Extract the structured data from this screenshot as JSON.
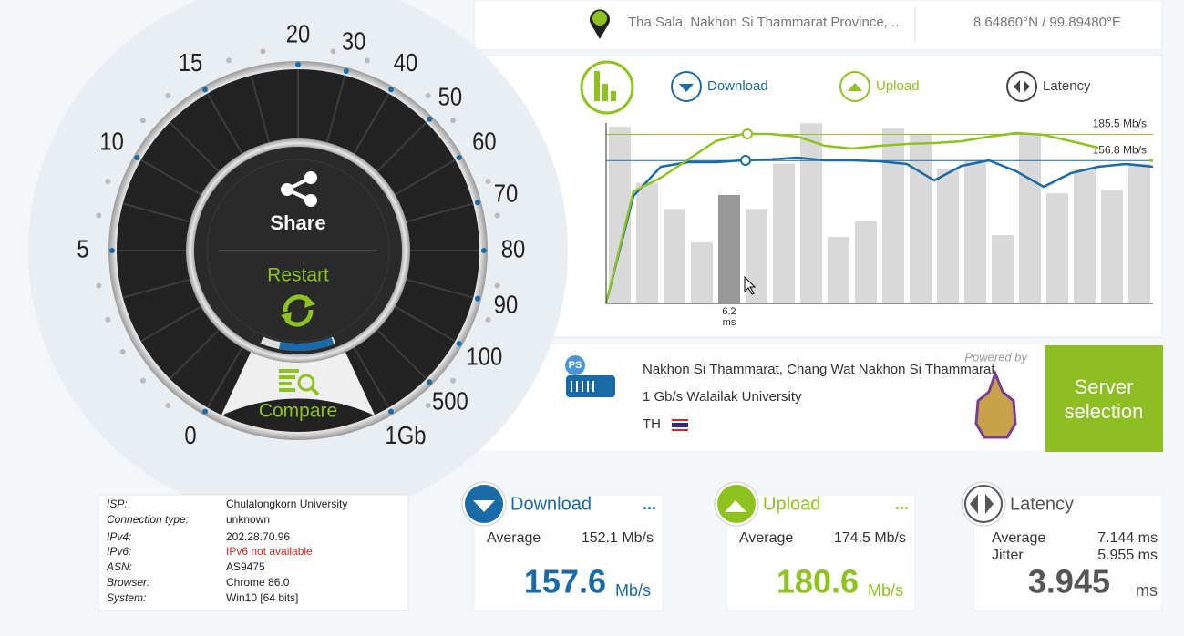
{
  "location": {
    "place": "Tha Sala, Nakhon Si Thammarat Province, ...",
    "coords": "8.64860°N / 99.89480°E"
  },
  "gauge": {
    "labels": [
      "0",
      "5",
      "10",
      "15",
      "20",
      "30",
      "40",
      "50",
      "60",
      "70",
      "80",
      "90",
      "100",
      "500",
      "1Gb"
    ],
    "share": "Share",
    "restart": "Restart",
    "compare": "Compare"
  },
  "graph": {
    "ylim": [
      0,
      210
    ],
    "y2lim": [
      0,
      10.94
    ],
    "series": [
      {
        "name": "Download",
        "color": "#1a6aa8",
        "values": [
          0,
          118,
          150,
          155,
          155,
          157,
          158,
          160,
          157,
          157,
          156,
          153,
          135,
          151,
          157,
          145,
          128,
          143,
          150,
          153,
          150
        ]
      },
      {
        "name": "Upload",
        "color": "#8dc21f",
        "values": [
          0,
          123,
          138,
          158,
          178,
          186,
          186,
          183,
          173,
          170,
          173,
          175,
          176,
          178,
          183,
          187,
          185,
          178,
          171,
          null,
          null
        ]
      }
    ],
    "latency": {
      "name": "Latency",
      "color": "#d9d9d9",
      "unit": "ms",
      "values": [
        10.1,
        6.9,
        5.4,
        3.5,
        6.2,
        5.4,
        8.0,
        10.3,
        3.8,
        4.7,
        10.0,
        9.7,
        7.7,
        8.2,
        3.9,
        9.7,
        6.3,
        7.7,
        6.5,
        8.0
      ]
    },
    "levels": [
      {
        "value": 185.5,
        "label": "185.5 Mb/s"
      },
      {
        "value": 156.8,
        "label": "156.8 Mb/s"
      }
    ]
  },
  "server": {
    "logo": "PS",
    "powered_by": "Powered by",
    "city": "Nakhon Si Thammarat, Chang Wat Nakhon Si Thammarat",
    "provider": "1 Gb/s Walailak University",
    "country": "TH",
    "button": "Server selection"
  },
  "client": {
    "rows": [
      [
        "ISP:",
        "Chulalongkorn University"
      ],
      [
        "Connection type:",
        "unknown"
      ],
      [
        "IPv4:",
        "202.28.70.96"
      ],
      [
        "IPv6:",
        "IPv6 not available"
      ],
      [
        "ASN:",
        "AS9475"
      ],
      [
        "Browser:",
        "Chrome 86.0"
      ],
      [
        "System:",
        "Win10 [64 bits]"
      ]
    ]
  },
  "results": {
    "download": {
      "title": "Download",
      "more": "...",
      "average_label": "Average",
      "average": "152.1 Mb/s",
      "value": 157.6,
      "unit": "Mb/s"
    },
    "upload": {
      "title": "Upload",
      "more": "...",
      "average_label": "Average",
      "average": "174.5 Mb/s",
      "value": 180.6,
      "unit": "Mb/s"
    },
    "latency": {
      "title": "Latency",
      "average_label": "Average",
      "average": "7.144 ms",
      "jitter_label": "Jitter",
      "jitter": "5.955 ms",
      "value": 3.945,
      "unit": "ms"
    }
  }
}
